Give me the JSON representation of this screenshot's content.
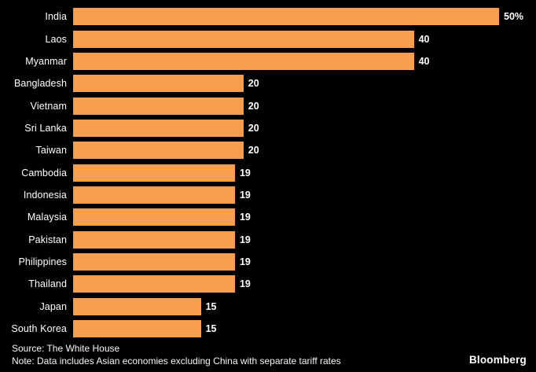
{
  "colors": {
    "background": "#000000",
    "bar": "#f89c4e",
    "text": "#ffffff"
  },
  "chart_data": {
    "type": "bar",
    "orientation": "horizontal",
    "title": "",
    "xlabel": "",
    "ylabel": "",
    "xlim": [
      0,
      50
    ],
    "grid": false,
    "legend": false,
    "bar_color": "#f89c4e",
    "categories": [
      "India",
      "Laos",
      "Myanmar",
      "Bangladesh",
      "Vietnam",
      "Sri Lanka",
      "Taiwan",
      "Cambodia",
      "Indonesia",
      "Malaysia",
      "Pakistan",
      "Philippines",
      "Thailand",
      "Japan",
      "South Korea"
    ],
    "values": [
      50,
      40,
      40,
      20,
      20,
      20,
      20,
      19,
      19,
      19,
      19,
      19,
      19,
      15,
      15
    ],
    "display_values": [
      "50%",
      "40",
      "40",
      "20",
      "20",
      "20",
      "20",
      "19",
      "19",
      "19",
      "19",
      "19",
      "19",
      "15",
      "15"
    ]
  },
  "footer": {
    "source": "Source: The White House",
    "note": "Note: Data includes Asian economies excluding China with separate tariff rates",
    "brand": "Bloomberg"
  }
}
